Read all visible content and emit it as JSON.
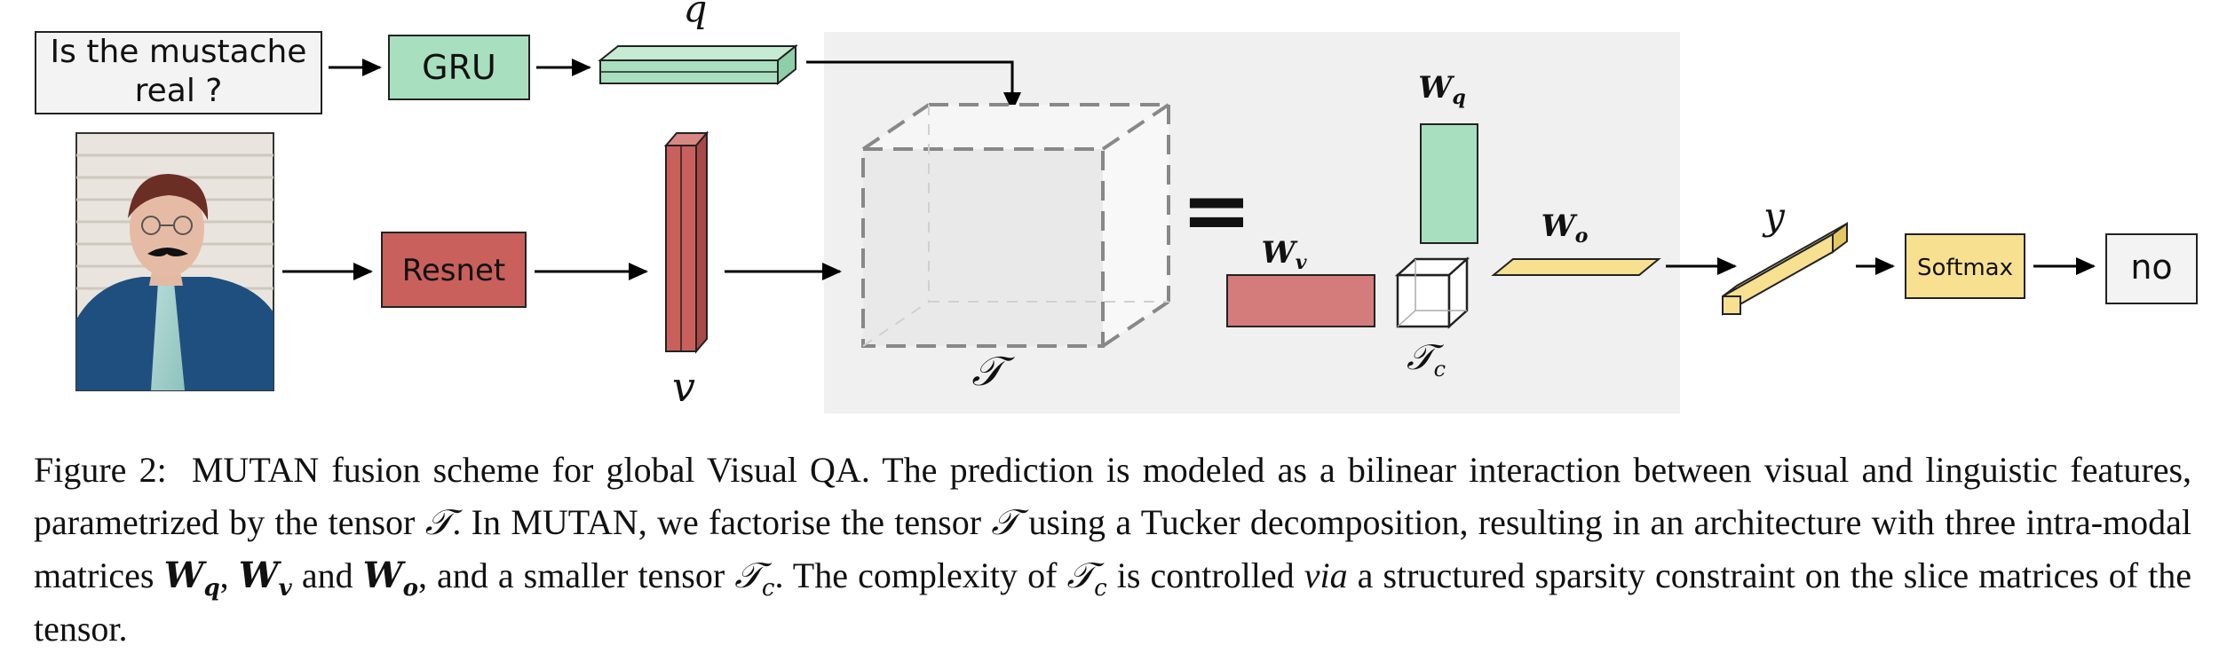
{
  "diagram": {
    "question_text": [
      "Is the mustache",
      "real ?"
    ],
    "gru_label": "GRU",
    "resnet_label": "Resnet",
    "softmax_label": "Softmax",
    "answer_label": "no",
    "q_label": "q",
    "v_label": "v",
    "tensor_label": "𝒯",
    "tensor_c_label": "𝒯",
    "tensor_c_sub": "c",
    "wq_label": "W",
    "wq_sub": "q",
    "wv_label": "W",
    "wv_sub": "v",
    "wo_label": "W",
    "wo_sub": "o",
    "y_label": "y",
    "equals": "=",
    "colors": {
      "green": "#a8dfbe",
      "red": "#c9605c",
      "red_light": "#d47b7c",
      "yellow": "#f7e08f",
      "panel": "#f0f0f0",
      "question_box": "#f3f3f3"
    }
  },
  "caption": {
    "figure_label": "Figure 2:",
    "p1": "MUTAN fusion scheme for global Visual QA. The prediction is modeled as a bilinear interaction between visual and linguistic features, parametrized by the tensor ",
    "t1": "𝒯",
    "p2": ". In MUTAN, we factorise the tensor ",
    "t2": "𝒯",
    "p3": " using a Tucker decomposition, resulting in an architecture with three intra-modal matrices ",
    "wq": "W",
    "wq_sub": "q",
    "comma1": ", ",
    "wv": "W",
    "wv_sub": "v",
    "and1": " and ",
    "wo": "W",
    "wo_sub": "o",
    "p4": ", and a smaller tensor ",
    "tc1": "𝒯",
    "tc1_sub": "c",
    "p5": ". The complexity of ",
    "tc2": "𝒯",
    "tc2_sub": "c",
    "p6": " is controlled ",
    "via": "via",
    "p7": " a structured sparsity constraint on the slice matrices of the tensor."
  }
}
